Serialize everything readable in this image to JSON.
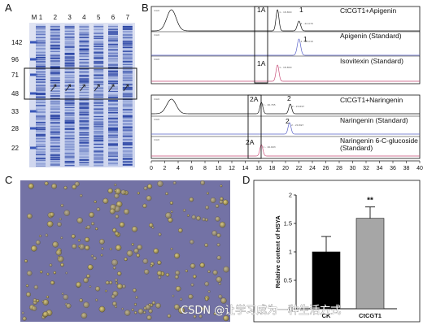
{
  "panels": {
    "A": {
      "letter": "A",
      "lane_labels": [
        "M",
        "1",
        "2",
        "3",
        "4",
        "5",
        "6",
        "7"
      ],
      "markers": [
        "142",
        "96",
        "71",
        "48",
        "33",
        "28",
        "22"
      ]
    },
    "B": {
      "letter": "B",
      "traces": [
        {
          "label": "CtCGT1+Apigenin",
          "peak_tags": [
            "1A",
            "1"
          ],
          "small_text": [
            "1 - 18.800",
            "2 - 22.070"
          ]
        },
        {
          "label": "Apigenin  (Standard)",
          "peak_tags": [
            "1"
          ],
          "small_text": [
            "2 - 22.010"
          ]
        },
        {
          "label": "Isovitexin  (Standard)",
          "peak_tags": [
            "1A"
          ],
          "small_text": [
            "1 - 18.800"
          ]
        },
        {
          "label": "CtCGT1+Naringenin",
          "peak_tags": [
            "2A",
            "2"
          ],
          "small_text": [
            "1 - 16.765",
            "2 - 20.697"
          ]
        },
        {
          "label": "Naringenin  (Standard)",
          "peak_tags": [
            "2"
          ],
          "small_text": [
            "2 - 20.697"
          ]
        },
        {
          "label": "Naringenin 6-C-glucoside",
          "label2": "(Standard)",
          "peak_tags": [
            "2A"
          ],
          "small_text": [
            "1 - 16.693"
          ]
        }
      ],
      "x_ticks": [
        "0",
        "2",
        "4",
        "6",
        "8",
        "10",
        "12",
        "14",
        "16",
        "18",
        "20",
        "22",
        "24",
        "26",
        "28",
        "30",
        "32",
        "34",
        "36",
        "38",
        "40"
      ]
    },
    "C": {
      "letter": "C"
    },
    "D": {
      "letter": "D"
    }
  },
  "chart_data": {
    "type": "bar",
    "categories": [
      "CK",
      "CtCGT1"
    ],
    "values": [
      1.0,
      1.59
    ],
    "errors": [
      0.27,
      0.2
    ],
    "colors": [
      "#000000",
      "#a6a6a6"
    ],
    "ylabel": "Relative content of HSYA",
    "ylim": [
      0,
      2.0
    ],
    "yticks": [
      "0",
      "0.5",
      "1",
      "1.5",
      "2"
    ],
    "annotations": [
      {
        "category": "CtCGT1",
        "text": "**"
      }
    ]
  },
  "watermark": "CSDN @让学习成为一种生活方式"
}
